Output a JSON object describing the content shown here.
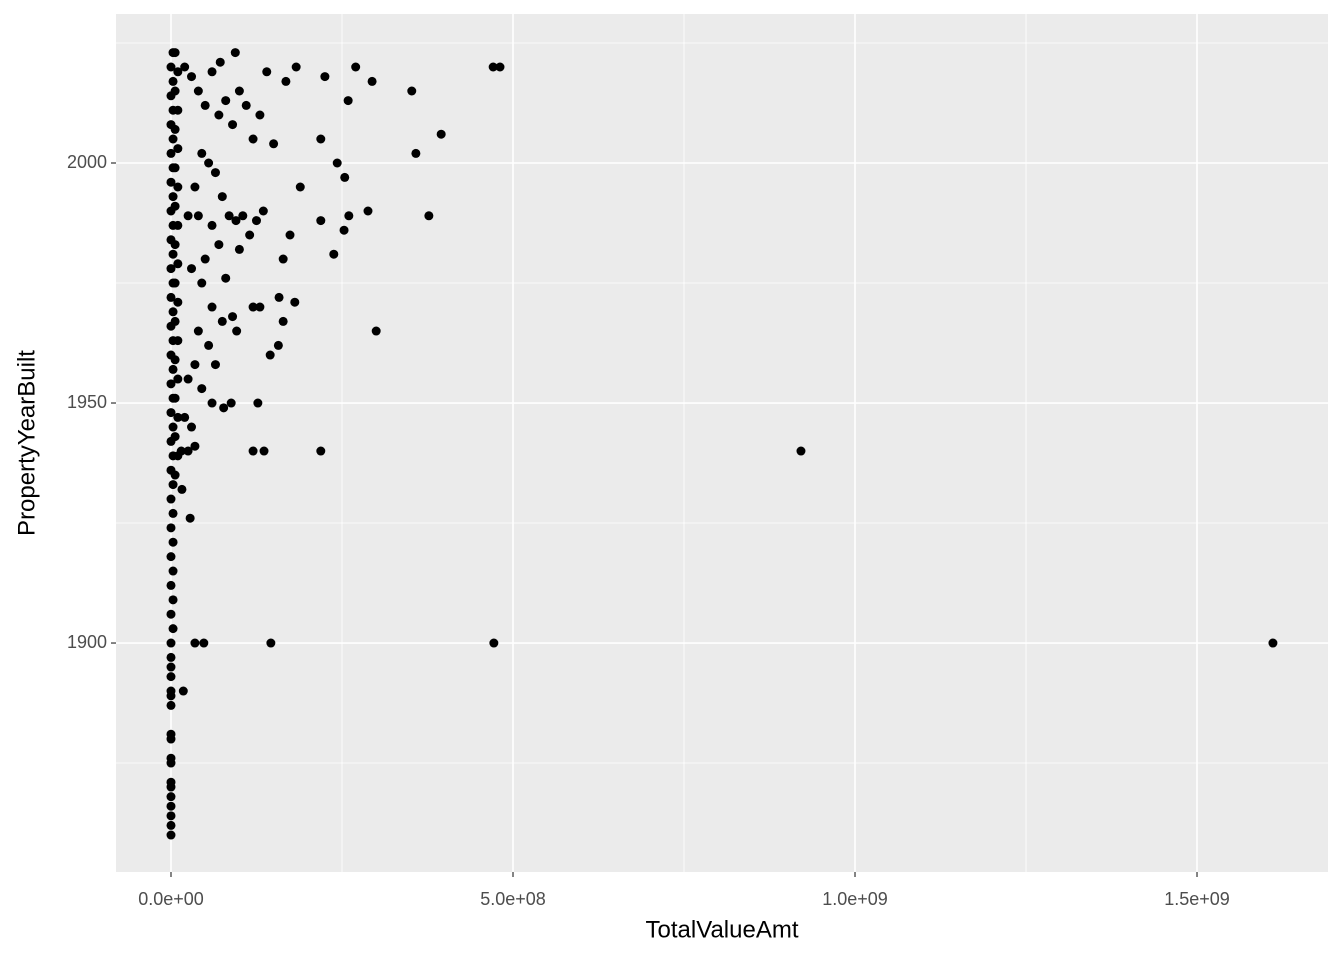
{
  "chart_data": {
    "type": "scatter",
    "x_label": "TotalValueAmt",
    "y_label": "PropertyYearBuilt",
    "color": "#000000",
    "panel_color": "#EBEBEB",
    "grid": true,
    "xlim": [
      -80400000,
      1691500000
    ],
    "ylim": [
      1852.3,
      2031.04
    ],
    "xticks": [
      {
        "value": 0,
        "label": "0.0e+00"
      },
      {
        "value": 500000000,
        "label": "5.0e+08"
      },
      {
        "value": 1000000000,
        "label": "1.0e+09"
      },
      {
        "value": 1500000000,
        "label": "1.5e+09"
      }
    ],
    "yticks": [
      1900,
      1950,
      2000
    ],
    "x_minor_ticks": [
      250000000,
      750000000,
      1250000000
    ],
    "y_minor_ticks": [
      1875,
      1925,
      1975,
      2025
    ],
    "x": [
      1611000000,
      921000000,
      472000000,
      146000000,
      471000000,
      481000000,
      395000000,
      358000000,
      352000000,
      377000000,
      300000000,
      270000000,
      294000000,
      288000000,
      259000000,
      219000000,
      243000000,
      254000000,
      260000000,
      253000000,
      238000000,
      219000000,
      219000000,
      225000000,
      183000000,
      168000000,
      136000000,
      127000000,
      120000000,
      96000000,
      158000000,
      164000000,
      181000000,
      145000000,
      157000000,
      174000000,
      164000000,
      189000000,
      94000000,
      72000000,
      88000000,
      77000000,
      60000000,
      16000000,
      28000000,
      48000000,
      35000000,
      18000000,
      20000000,
      30000000,
      40000000,
      50000000,
      60000000,
      70000000,
      80000000,
      90000000,
      100000000,
      110000000,
      120000000,
      130000000,
      140000000,
      150000000,
      45000000,
      55000000,
      65000000,
      35000000,
      75000000,
      85000000,
      95000000,
      105000000,
      115000000,
      125000000,
      135000000,
      25000000,
      40000000,
      60000000,
      70000000,
      50000000,
      30000000,
      45000000,
      80000000,
      100000000,
      120000000,
      130000000,
      60000000,
      75000000,
      90000000,
      40000000,
      55000000,
      35000000,
      25000000,
      45000000,
      65000000,
      20000000,
      30000000,
      15000000,
      25000000,
      35000000,
      0,
      0,
      0,
      0,
      0,
      0,
      0,
      0,
      0,
      0,
      0,
      0,
      0,
      0,
      0,
      0,
      0,
      0,
      3000000,
      0,
      3000000,
      0,
      3000000,
      0,
      3000000,
      0,
      3000000,
      0,
      3000000,
      0,
      3000000,
      0,
      3000000,
      0,
      3000000,
      0,
      3000000,
      0,
      3000000,
      0,
      3000000,
      0,
      3000000,
      0,
      3000000,
      0,
      3000000,
      0,
      3000000,
      0,
      3000000,
      0,
      3000000,
      0,
      3000000,
      0,
      3000000,
      0,
      3000000,
      6000000,
      10000000,
      6000000,
      10000000,
      6000000,
      10000000,
      6000000,
      10000000,
      6000000,
      10000000,
      6000000,
      10000000,
      6000000,
      10000000,
      6000000,
      10000000,
      6000000,
      10000000,
      6000000,
      10000000,
      6000000,
      10000000,
      6000000
    ],
    "values": [
      1900,
      1940,
      1900,
      1900,
      2020,
      2020,
      2006,
      2002,
      2015,
      1989,
      1965,
      2020,
      2017,
      1990,
      2013,
      1940,
      2000,
      1997,
      1989,
      1986,
      1981,
      1988,
      2005,
      2018,
      2020,
      2017,
      1940,
      1950,
      1940,
      1965,
      1972,
      1967,
      1971,
      1960,
      1962,
      1985,
      1980,
      1995,
      2023,
      2021,
      1950,
      1949,
      1950,
      1932,
      1926,
      1900,
      1900,
      1890,
      2020,
      2018,
      2015,
      2012,
      2019,
      2010,
      2013,
      2008,
      2015,
      2012,
      2005,
      2010,
      2019,
      2004,
      2002,
      2000,
      1998,
      1995,
      1993,
      1989,
      1988,
      1989,
      1985,
      1988,
      1990,
      1989,
      1989,
      1987,
      1983,
      1980,
      1978,
      1975,
      1976,
      1982,
      1970,
      1970,
      1970,
      1967,
      1968,
      1965,
      1962,
      1958,
      1955,
      1953,
      1958,
      1947,
      1945,
      1940,
      1940,
      1941,
      1860,
      1862,
      1864,
      1866,
      1868,
      1870,
      1871,
      1875,
      1876,
      1880,
      1881,
      1887,
      1889,
      1890,
      1893,
      1895,
      1897,
      1900,
      1903,
      1906,
      1909,
      1912,
      1915,
      1918,
      1921,
      1924,
      1927,
      1930,
      1933,
      1936,
      1939,
      1942,
      1945,
      1948,
      1951,
      1954,
      1957,
      1960,
      1963,
      1966,
      1969,
      1972,
      1975,
      1978,
      1981,
      1984,
      1987,
      1990,
      1993,
      1996,
      1999,
      2002,
      2005,
      2008,
      2011,
      2014,
      2017,
      2020,
      2023,
      1935,
      1939,
      1943,
      1947,
      1951,
      1955,
      1959,
      1963,
      1967,
      1971,
      1975,
      1979,
      1983,
      1987,
      1991,
      1995,
      1999,
      2003,
      2007,
      2011,
      2015,
      2019,
      2023
    ]
  }
}
